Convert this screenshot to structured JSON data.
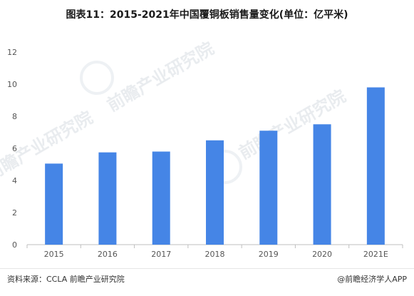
{
  "title": "图表11：2015-2021年中国覆铜板销售量变化(单位：亿平米)",
  "watermark_text": "前瞻产业研究院",
  "footer": {
    "source": "资料来源：CCLA 前瞻产业研究院",
    "credit": "@前瞻经济学人APP"
  },
  "colors": {
    "bar": "#4585e6",
    "axis": "#bfbfbf",
    "tick_text": "#555555"
  },
  "chart_data": {
    "type": "bar",
    "title": "图表11：2015-2021年中国覆铜板销售量变化(单位：亿平米)",
    "xlabel": "",
    "ylabel": "",
    "categories": [
      "2015",
      "2016",
      "2017",
      "2018",
      "2019",
      "2020",
      "2021E"
    ],
    "values": [
      5.05,
      5.75,
      5.8,
      6.5,
      7.1,
      7.5,
      9.8
    ],
    "ylim": [
      0,
      12
    ],
    "yticks": [
      0,
      2,
      4,
      6,
      8,
      10,
      12
    ],
    "grid": false,
    "legend": "none"
  }
}
